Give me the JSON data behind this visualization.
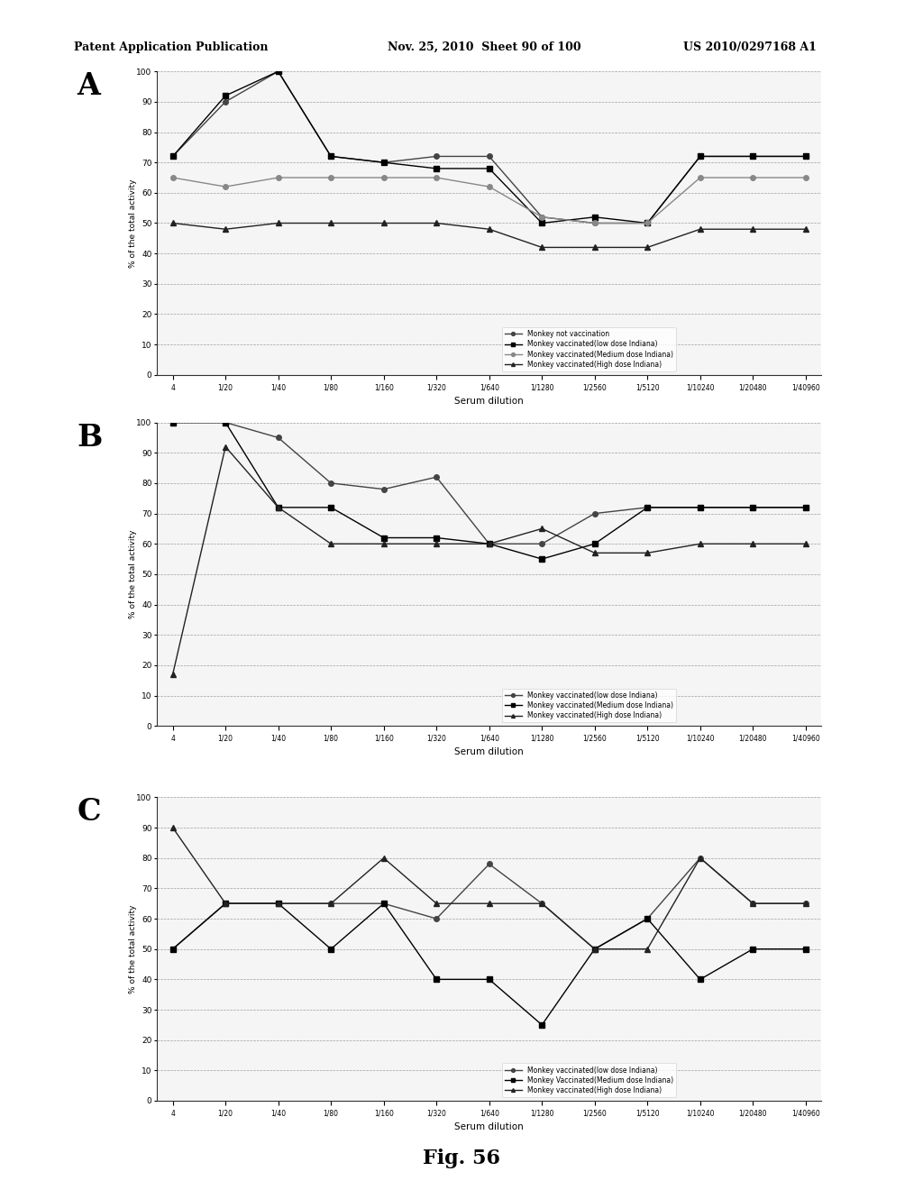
{
  "header_left": "Patent Application Publication",
  "header_mid": "Nov. 25, 2010  Sheet 90 of 100",
  "header_right": "US 2010/0297168 A1",
  "figure_label": "Fig. 56",
  "ylabel": "% of the total activity",
  "xlabel": "Serum dilution",
  "yticks": [
    0,
    10,
    20,
    30,
    40,
    50,
    60,
    70,
    80,
    90,
    100
  ],
  "xtick_labels": [
    "4",
    "1/20",
    "1/40",
    "1/80",
    "1/160",
    "1/320",
    "1/640",
    "1/1280",
    "1/2560",
    "1/5120",
    "1/10240",
    "1/20480",
    "1/40960"
  ],
  "bg_color": "#e8e8e8",
  "panels": [
    {
      "label": "A",
      "series": [
        {
          "label": "Monkey not vaccination",
          "marker": "o",
          "color": "#444444",
          "y": [
            72,
            90,
            100,
            72,
            70,
            72,
            72,
            52,
            50,
            50,
            72,
            72,
            72
          ]
        },
        {
          "label": "Monkey vaccinated(low dose Indiana)",
          "marker": "s",
          "color": "#000000",
          "y": [
            72,
            92,
            100,
            72,
            70,
            68,
            68,
            50,
            52,
            50,
            72,
            72,
            72
          ]
        },
        {
          "label": "Monkey vaccinated(Medium dose Indiana)",
          "marker": "o",
          "color": "#888888",
          "y": [
            65,
            62,
            65,
            65,
            65,
            65,
            62,
            52,
            50,
            50,
            65,
            65,
            65
          ]
        },
        {
          "label": "Monkey vaccinated(High dose Indiana)",
          "marker": "^",
          "color": "#222222",
          "y": [
            50,
            48,
            50,
            50,
            50,
            50,
            48,
            42,
            42,
            42,
            48,
            48,
            48
          ]
        }
      ]
    },
    {
      "label": "B",
      "series": [
        {
          "label": "Monkey vaccinated(low dose Indiana)",
          "marker": "o",
          "color": "#444444",
          "y": [
            100,
            100,
            95,
            80,
            78,
            82,
            60,
            60,
            70,
            72,
            72,
            72,
            72
          ]
        },
        {
          "label": "Monkey vaccinated(Medium dose Indiana)",
          "marker": "s",
          "color": "#000000",
          "y": [
            100,
            100,
            72,
            72,
            62,
            62,
            60,
            55,
            60,
            72,
            72,
            72,
            72
          ]
        },
        {
          "label": "Monkey vaccinated(High dose Indiana)",
          "marker": "^",
          "color": "#222222",
          "y": [
            17,
            92,
            72,
            60,
            60,
            60,
            60,
            65,
            57,
            57,
            60,
            60,
            60
          ]
        }
      ]
    },
    {
      "label": "C",
      "series": [
        {
          "label": "Monkey vaccinated(low dose Indiana)",
          "marker": "o",
          "color": "#444444",
          "y": [
            50,
            65,
            65,
            65,
            65,
            60,
            78,
            65,
            50,
            60,
            80,
            65,
            65
          ]
        },
        {
          "label": "Monkey Vaccinated(Medium dose Indiana)",
          "marker": "s",
          "color": "#000000",
          "y": [
            50,
            65,
            65,
            50,
            65,
            40,
            40,
            25,
            50,
            60,
            40,
            50,
            50
          ]
        },
        {
          "label": "Monkey vaccinated(High dose Indiana)",
          "marker": "^",
          "color": "#222222",
          "y": [
            90,
            65,
            65,
            65,
            80,
            65,
            65,
            65,
            50,
            50,
            80,
            65,
            65
          ]
        }
      ]
    }
  ]
}
